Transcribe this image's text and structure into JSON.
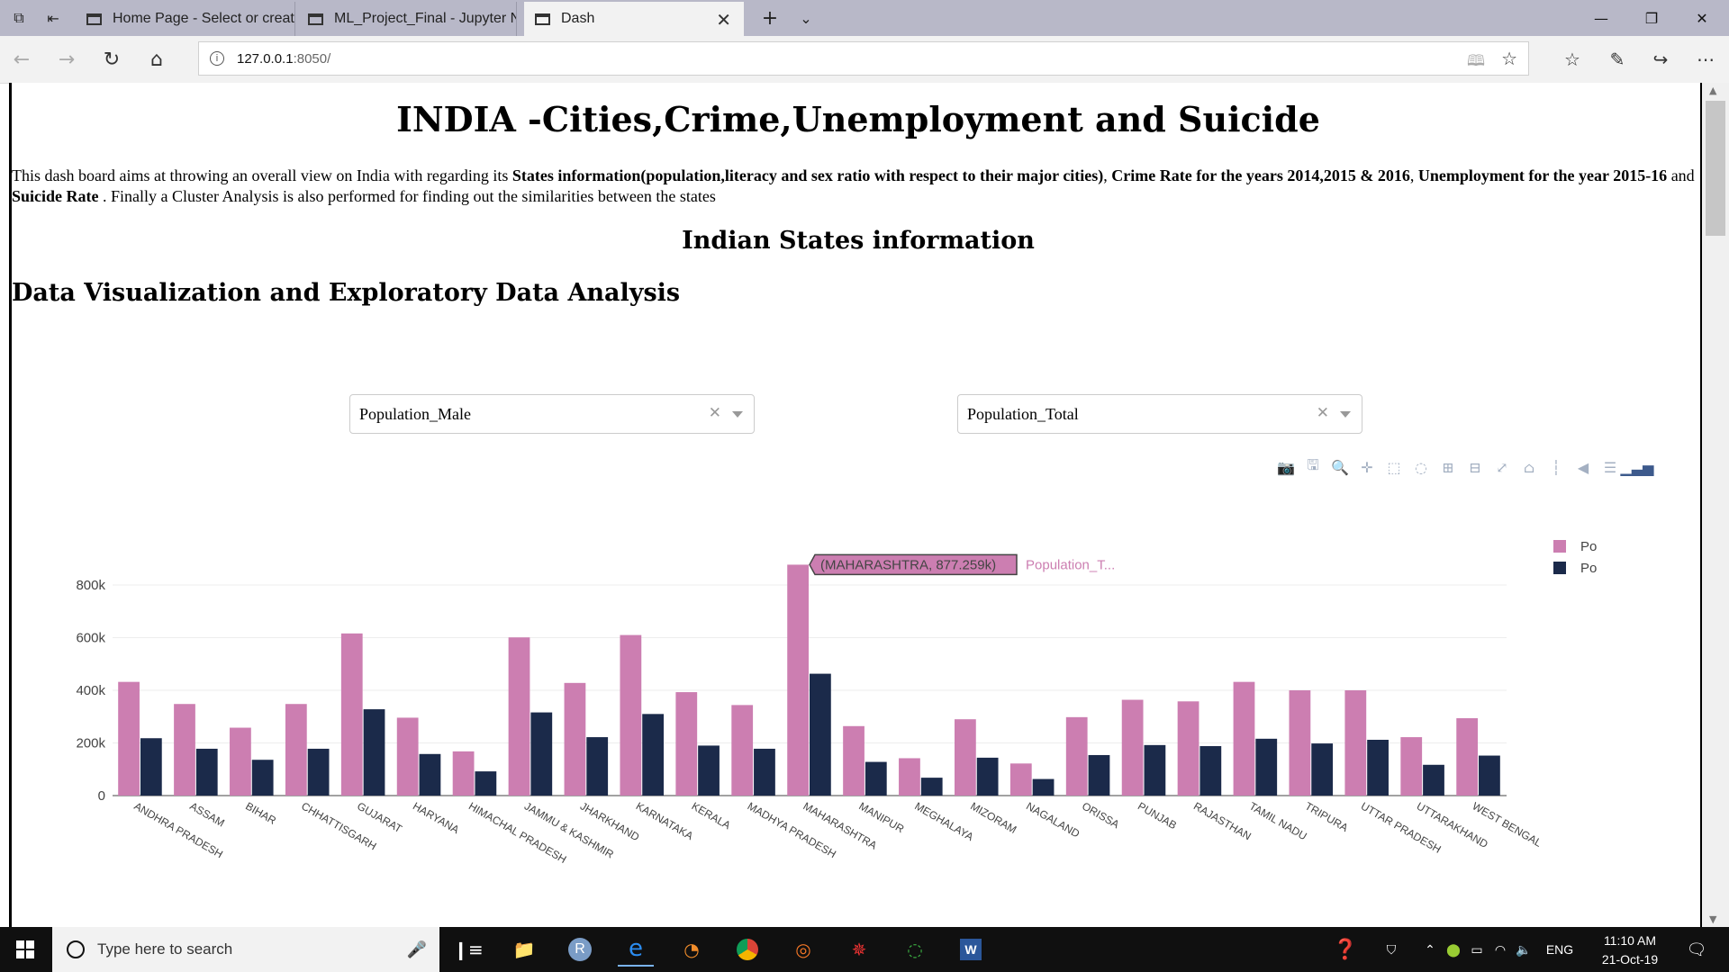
{
  "browser": {
    "tabs": [
      {
        "label": "Home Page - Select or creat",
        "active": false
      },
      {
        "label": "ML_Project_Final - Jupyter N",
        "active": false
      },
      {
        "label": "Dash",
        "active": true
      }
    ],
    "url_host": "127.0.0.1",
    "url_rest": ":8050/"
  },
  "page": {
    "title": "INDIA -Cities,Crime,Unemployment and Suicide",
    "intro": {
      "t1": "This dash board aims at throwing an overall view on India with regarding its ",
      "b1": "States information(population,literacy and sex ratio with respect to their major cities)",
      "t2": ", ",
      "b2": "Crime Rate for the years 2014,2015 & 2016",
      "t3": ", ",
      "b3": "Unemployment for the year 2015-16",
      "t4": " and ",
      "b4": "Suicide Rate",
      "t5": " . Finally a Cluster Analysis is also performed for finding out the similarities between the states"
    },
    "subtitle1": "Indian States information",
    "subtitle2": "Data Visualization and Exploratory Data Analysis",
    "dropdown1": {
      "value": "Population_Male"
    },
    "dropdown2": {
      "value": "Population_Total"
    }
  },
  "chart_data": {
    "type": "bar",
    "categories": [
      "ANDHRA PRADESH",
      "ASSAM",
      "BIHAR",
      "CHHATTISGARH",
      "GUJARAT",
      "HARYANA",
      "HIMACHAL PRADESH",
      "JAMMU & KASHMIR",
      "JHARKHAND",
      "KARNATAKA",
      "KERALA",
      "MADHYA PRADESH",
      "MAHARASHTRA",
      "MANIPUR",
      "MEGHALAYA",
      "MIZORAM",
      "NAGALAND",
      "ORISSA",
      "PUNJAB",
      "RAJASTHAN",
      "TAMIL NADU",
      "TRIPURA",
      "UTTAR PRADESH",
      "UTTARAKHAND",
      "WEST BENGAL"
    ],
    "series": [
      {
        "name": "Population_Total",
        "color": "#cc7eb1",
        "values": [
          432000,
          348000,
          258000,
          348000,
          616000,
          296000,
          168000,
          601000,
          428000,
          610000,
          393000,
          344000,
          877259,
          264000,
          142000,
          290000,
          122000,
          298000,
          364000,
          358000,
          432000,
          400000,
          400000,
          222000,
          294000
        ]
      },
      {
        "name": "Population_Male",
        "color": "#1b2a4a",
        "values": [
          218000,
          178000,
          136000,
          178000,
          328000,
          158000,
          92000,
          316000,
          222000,
          310000,
          190000,
          178000,
          463000,
          128000,
          68000,
          144000,
          63000,
          154000,
          192000,
          188000,
          216000,
          198000,
          212000,
          117000,
          152000
        ]
      }
    ],
    "yticks": [
      "0",
      "200k",
      "400k",
      "600k",
      "800k"
    ],
    "ylim": [
      0,
      930000
    ],
    "hover": {
      "category": "MAHARASHTRA",
      "label": "(MAHARASHTRA, 877.259k)",
      "series_label": "Population_T..."
    },
    "legend_position": "top-right",
    "grid": true
  },
  "taskbar": {
    "search_placeholder": "Type here to search",
    "lang": "ENG",
    "time": "11:10 AM",
    "date": "21-Oct-19"
  }
}
